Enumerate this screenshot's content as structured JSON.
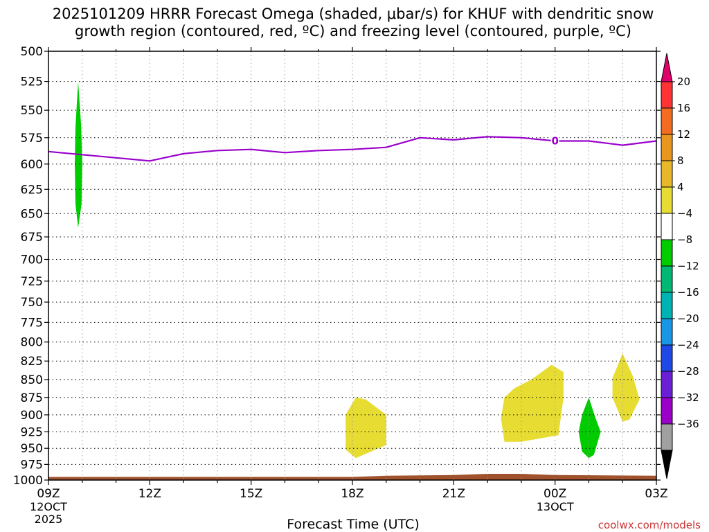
{
  "chart_data": {
    "type": "time-height",
    "title": [
      "2025101209 HRRR Forecast Omega (shaded, μbar/s) for KHUF with dendritic snow",
      "growth region (contoured, red, ºC) and freezing level (contoured, purple, ºC)"
    ],
    "xlabel": "Forecast Time (UTC)",
    "credit": "coolwx.com/models",
    "x_unit": "hours after 2025-10-12 09Z",
    "xlim": [
      0,
      18
    ],
    "x_ticks": [
      {
        "x": 0,
        "label": "09Z",
        "sub": [
          "12OCT",
          "2025"
        ]
      },
      {
        "x": 3,
        "label": "12Z",
        "sub": []
      },
      {
        "x": 6,
        "label": "15Z",
        "sub": []
      },
      {
        "x": 9,
        "label": "18Z",
        "sub": []
      },
      {
        "x": 12,
        "label": "21Z",
        "sub": []
      },
      {
        "x": 15,
        "label": "00Z",
        "sub": [
          "13OCT"
        ]
      },
      {
        "x": 18,
        "label": "03Z",
        "sub": []
      }
    ],
    "y_ticks": [
      500,
      525,
      550,
      575,
      600,
      625,
      650,
      675,
      700,
      725,
      750,
      775,
      800,
      825,
      850,
      875,
      900,
      925,
      950,
      975,
      1000
    ],
    "ylim": [
      500,
      1000
    ],
    "y_scale": "log-pressure",
    "grid": true,
    "freezing_level": {
      "color": "#9900cc",
      "label": "0",
      "label_x": 15,
      "points": [
        [
          0,
          588
        ],
        [
          1,
          591
        ],
        [
          2,
          594
        ],
        [
          3,
          597
        ],
        [
          4,
          590
        ],
        [
          5,
          587
        ],
        [
          6,
          586
        ],
        [
          7,
          589
        ],
        [
          8,
          587
        ],
        [
          9,
          586
        ],
        [
          10,
          584
        ],
        [
          11,
          575
        ],
        [
          12,
          577
        ],
        [
          13,
          574
        ],
        [
          14,
          575
        ],
        [
          15,
          578
        ],
        [
          16,
          578
        ],
        [
          17,
          582
        ],
        [
          18,
          578
        ]
      ]
    },
    "terrain": {
      "color": "#a0522d",
      "points": [
        [
          0,
          995
        ],
        [
          9,
          995
        ],
        [
          10,
          993
        ],
        [
          12,
          992
        ],
        [
          13,
          990
        ],
        [
          14,
          990
        ],
        [
          15,
          992
        ],
        [
          18,
          993
        ]
      ]
    },
    "shaded": [
      {
        "value_range": [
          -8,
          -4
        ],
        "color": "#00cc00",
        "polygon": [
          [
            0.88,
            525
          ],
          [
            0.97,
            565
          ],
          [
            1.0,
            600
          ],
          [
            0.98,
            640
          ],
          [
            0.88,
            665
          ],
          [
            0.8,
            640
          ],
          [
            0.78,
            600
          ],
          [
            0.8,
            565
          ]
        ]
      },
      {
        "value_range": [
          4,
          8
        ],
        "color": "#e6dc32",
        "polygon": [
          [
            9.1,
            875
          ],
          [
            9.4,
            878
          ],
          [
            10.0,
            900
          ],
          [
            10.0,
            945
          ],
          [
            9.1,
            965
          ],
          [
            8.8,
            952
          ],
          [
            8.8,
            900
          ]
        ]
      },
      {
        "value_range": [
          4,
          8
        ],
        "color": "#e6dc32",
        "polygon": [
          [
            14.9,
            830
          ],
          [
            15.25,
            840
          ],
          [
            15.25,
            875
          ],
          [
            15.1,
            930
          ],
          [
            14.0,
            940
          ],
          [
            13.5,
            940
          ],
          [
            13.4,
            905
          ],
          [
            13.5,
            875
          ],
          [
            13.8,
            862
          ],
          [
            14.3,
            850
          ]
        ]
      },
      {
        "value_range": [
          -8,
          -4
        ],
        "color": "#00cc00",
        "polygon": [
          [
            16.0,
            875
          ],
          [
            16.2,
            905
          ],
          [
            16.35,
            925
          ],
          [
            16.15,
            960
          ],
          [
            16.0,
            965
          ],
          [
            15.8,
            955
          ],
          [
            15.7,
            925
          ],
          [
            15.8,
            900
          ]
        ]
      },
      {
        "value_range": [
          4,
          8
        ],
        "color": "#e6dc32",
        "polygon": [
          [
            17.0,
            815
          ],
          [
            17.3,
            845
          ],
          [
            17.5,
            878
          ],
          [
            17.2,
            907
          ],
          [
            17.0,
            910
          ],
          [
            16.7,
            875
          ],
          [
            16.7,
            848
          ]
        ]
      }
    ],
    "colorbar": {
      "labels": [
        "20",
        "16",
        "12",
        "8",
        "4",
        "−4",
        "−8",
        "−12",
        "−16",
        "−20",
        "−24",
        "−28",
        "−32",
        "−36"
      ],
      "top_arrow_color": "#e0006a",
      "bottom_arrow_color": "#000000",
      "bins": [
        "#ff3333",
        "#f26d22",
        "#e8961f",
        "#e8b82a",
        "#e6dc32",
        "#ffffff",
        "#00cc00",
        "#00b874",
        "#00b3b3",
        "#1a96e6",
        "#1f48e6",
        "#6a1fd6",
        "#9a00c8",
        "#a0a0a0"
      ]
    }
  }
}
